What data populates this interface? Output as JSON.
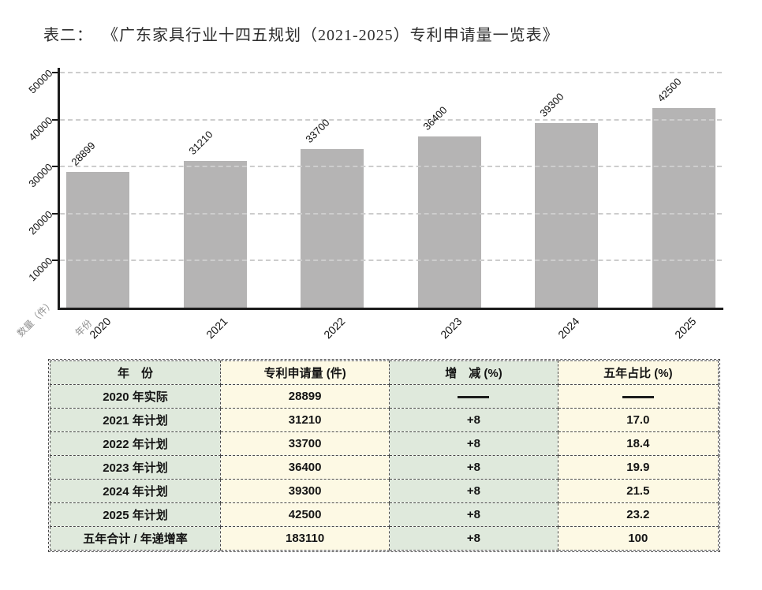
{
  "page": {
    "title_prefix": "表二：",
    "title": "《广东家具行业十四五规划（2021-2025）专利申请量一览表》"
  },
  "chart_data": {
    "type": "bar",
    "title": "",
    "categories": [
      "2020",
      "2021",
      "2022",
      "2023",
      "2024",
      "2025"
    ],
    "values": [
      28899,
      31210,
      33700,
      36400,
      39300,
      42500
    ],
    "value_labels": [
      "28899",
      "31210",
      "33700",
      "36400",
      "39300",
      "42500"
    ],
    "xlabel": "年份",
    "ylabel": "数量（件）",
    "ylim": [
      0,
      50000
    ],
    "yticks": [
      10000,
      20000,
      30000,
      40000,
      50000
    ],
    "grid": "horizontal-dashed",
    "legend": "none",
    "bar_color": "#b5b4b4"
  },
  "table": {
    "headers": [
      "年　份",
      "专利申请量 (件)",
      "增　减 (%)",
      "五年占比 (%)"
    ],
    "column_colors": [
      "#dfe9dc",
      "#fdf9e4",
      "#dfe9dc",
      "#fdf9e4"
    ],
    "rows": [
      [
        "2020 年实际",
        "28899",
        "——",
        "——"
      ],
      [
        "2021 年计划",
        "31210",
        "+8",
        "17.0"
      ],
      [
        "2022 年计划",
        "33700",
        "+8",
        "18.4"
      ],
      [
        "2023 年计划",
        "36400",
        "+8",
        "19.9"
      ],
      [
        "2024 年计划",
        "39300",
        "+8",
        "21.5"
      ],
      [
        "2025 年计划",
        "42500",
        "+8",
        "23.2"
      ],
      [
        "五年合计 / 年递增率",
        "183110",
        "+8",
        "100"
      ]
    ]
  }
}
